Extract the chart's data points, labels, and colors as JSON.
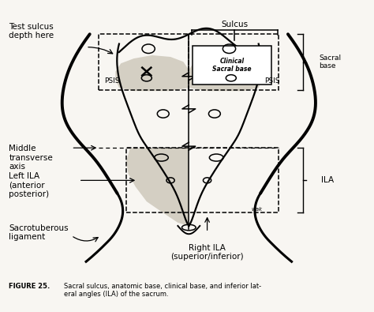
{
  "title": "FIGURE 25.",
  "caption": "Sacral sulcus, anatomic base, clinical base, and inferior lat-\neral angles (ILA) of the sacrum.",
  "bg_color": "#f8f6f2",
  "gray_shade": "#c8c2b4",
  "labels": {
    "test_sulcus": "Test sulcus\ndepth here",
    "sulcus": "Sulcus",
    "clinical_sacral_base": "Clinical\nSacral base",
    "sacral_base": "Sacral\nbase",
    "psis_left": "PSIS",
    "psis_right": "PSIS",
    "middle_transverse_axis": "Middle\ntransverse\naxis",
    "left_ila": "Left ILA\n(anterior\nposterior)",
    "ila": "ILA",
    "sacrotuberous": "Sacrotuberous\nligament",
    "right_ila": "Right ILA\n(superior/inferior)",
    "wak": "wak"
  },
  "figsize": [
    4.74,
    3.95
  ],
  "dpi": 100
}
